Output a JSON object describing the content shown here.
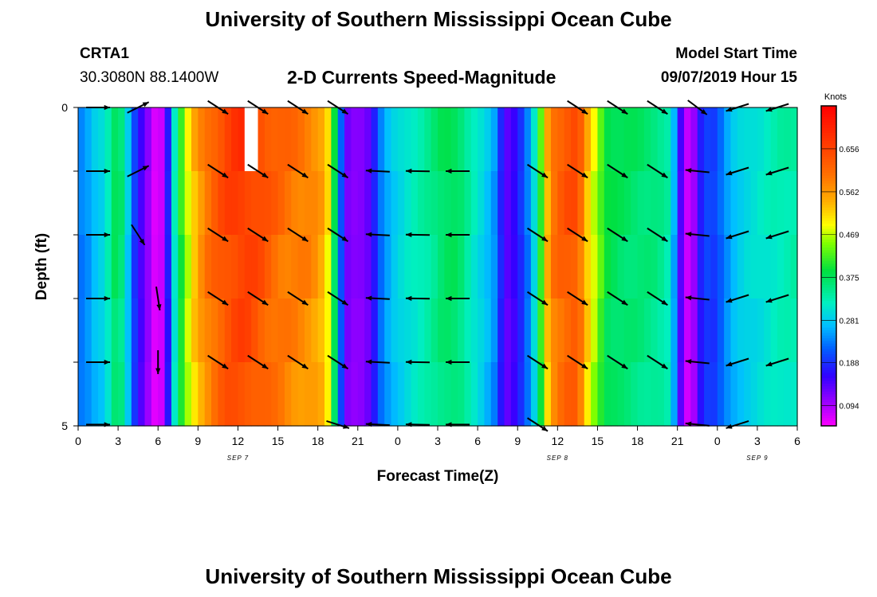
{
  "header": {
    "title": "University of Southern Mississippi Ocean Cube",
    "station_id": "CRTA1",
    "coordinates": "30.3080N 88.1400W",
    "subtitle": "2-D Currents Speed-Magnitude",
    "model_label": "Model Start Time",
    "model_time": "09/07/2019 Hour 15",
    "footer_title": "University of Southern Mississippi Ocean Cube"
  },
  "colors": {
    "background": "#ffffff",
    "text": "#000000",
    "missing": "#ffffff"
  },
  "chart_data": {
    "type": "heatmap",
    "title": "2-D Currents Speed-Magnitude",
    "xlabel": "Forecast Time(Z)",
    "ylabel": "Depth (ft)",
    "units": "Knots",
    "x_range_hours": [
      0,
      54
    ],
    "y_range_ft": [
      0,
      5
    ],
    "x_tick_hours": [
      0,
      3,
      6,
      9,
      12,
      15,
      18,
      21,
      24,
      27,
      30,
      33,
      36,
      39,
      42,
      45,
      48,
      51,
      54
    ],
    "x_tick_labels": [
      "0",
      "3",
      "6",
      "9",
      "12",
      "15",
      "18",
      "21",
      "0",
      "3",
      "6",
      "9",
      "12",
      "15",
      "18",
      "21",
      "0",
      "3",
      "6"
    ],
    "y_tick_ft": [
      0,
      1,
      2,
      3,
      4,
      5
    ],
    "y_tick_labels": [
      "0",
      "",
      "",
      "",
      "",
      "5"
    ],
    "day_labels": [
      {
        "text": "SEP 7",
        "hour": 12
      },
      {
        "text": "SEP 8",
        "hour": 36
      },
      {
        "text": "SEP 9",
        "hour": 51
      }
    ],
    "colorbar": {
      "min": 0.05,
      "max": 0.75,
      "tick_values": [
        0.094,
        0.188,
        0.281,
        0.375,
        0.469,
        0.562,
        0.656
      ],
      "tick_labels": [
        "0.094",
        "0.188",
        "0.281",
        "0.375",
        "0.469",
        "0.562",
        "0.656"
      ],
      "stops": [
        {
          "v": 0.05,
          "c": "#ff00ff"
        },
        {
          "v": 0.1,
          "c": "#a000ff"
        },
        {
          "v": 0.16,
          "c": "#3000ff"
        },
        {
          "v": 0.22,
          "c": "#0060ff"
        },
        {
          "v": 0.27,
          "c": "#00c0ff"
        },
        {
          "v": 0.32,
          "c": "#00f0c0"
        },
        {
          "v": 0.39,
          "c": "#00e040"
        },
        {
          "v": 0.45,
          "c": "#80ff00"
        },
        {
          "v": 0.49,
          "c": "#ffff00"
        },
        {
          "v": 0.54,
          "c": "#ffb000"
        },
        {
          "v": 0.6,
          "c": "#ff7000"
        },
        {
          "v": 0.66,
          "c": "#ff4000"
        },
        {
          "v": 0.75,
          "c": "#ff0000"
        }
      ]
    },
    "time_speed_profile": [
      [
        0,
        0.24
      ],
      [
        0.5,
        0.24
      ],
      [
        1.0,
        0.27
      ],
      [
        1.5,
        0.29
      ],
      [
        2.0,
        0.3
      ],
      [
        2.5,
        0.36
      ],
      [
        3.0,
        0.4
      ],
      [
        3.5,
        0.33
      ],
      [
        4.0,
        0.24
      ],
      [
        4.5,
        0.16
      ],
      [
        5.0,
        0.14
      ],
      [
        5.5,
        0.08
      ],
      [
        6.0,
        0.06
      ],
      [
        6.5,
        0.1
      ],
      [
        7.0,
        0.26
      ],
      [
        7.5,
        0.38
      ],
      [
        8.0,
        0.45
      ],
      [
        8.5,
        0.52
      ],
      [
        9.0,
        0.56
      ],
      [
        9.5,
        0.6
      ],
      [
        10.5,
        0.64
      ],
      [
        11.5,
        0.67
      ],
      [
        12.5,
        0.68
      ],
      [
        13.5,
        0.66
      ],
      [
        14.5,
        0.63
      ],
      [
        15.5,
        0.61
      ],
      [
        16.5,
        0.6
      ],
      [
        17.5,
        0.59
      ],
      [
        18.5,
        0.55
      ],
      [
        19.0,
        0.47
      ],
      [
        19.5,
        0.3
      ],
      [
        20.0,
        0.13
      ],
      [
        21.0,
        0.11
      ],
      [
        22.0,
        0.14
      ],
      [
        22.5,
        0.22
      ],
      [
        23.5,
        0.28
      ],
      [
        24.5,
        0.31
      ],
      [
        25.5,
        0.33
      ],
      [
        26.5,
        0.35
      ],
      [
        27.5,
        0.38
      ],
      [
        28.5,
        0.38
      ],
      [
        29.5,
        0.33
      ],
      [
        30.5,
        0.29
      ],
      [
        31.5,
        0.24
      ],
      [
        32.0,
        0.13
      ],
      [
        33.0,
        0.17
      ],
      [
        34.0,
        0.26
      ],
      [
        34.5,
        0.35
      ],
      [
        35.0,
        0.5
      ],
      [
        35.5,
        0.6
      ],
      [
        36.5,
        0.64
      ],
      [
        37.5,
        0.65
      ],
      [
        38.0,
        0.57
      ],
      [
        38.5,
        0.5
      ],
      [
        39.0,
        0.47
      ],
      [
        39.5,
        0.4
      ],
      [
        40.5,
        0.38
      ],
      [
        42.0,
        0.37
      ],
      [
        43.5,
        0.36
      ],
      [
        44.5,
        0.33
      ],
      [
        45.0,
        0.2
      ],
      [
        45.5,
        0.09
      ],
      [
        46.0,
        0.07
      ],
      [
        46.5,
        0.14
      ],
      [
        47.0,
        0.22
      ],
      [
        47.5,
        0.19
      ],
      [
        48.0,
        0.21
      ],
      [
        49.0,
        0.27
      ],
      [
        50.0,
        0.3
      ],
      [
        51.0,
        0.31
      ],
      [
        52.5,
        0.33
      ],
      [
        54.0,
        0.34
      ]
    ],
    "depth_rows": 5,
    "missing_cells": [
      {
        "hour": 13,
        "row": 0
      }
    ],
    "vectors": [
      {
        "hour": 1.5,
        "depths": [
          [
            0,
            0.3
          ],
          [
            1,
            0.3
          ],
          [
            2,
            0.3
          ],
          [
            3,
            0.3
          ],
          [
            4,
            0.3
          ],
          [
            5,
            0.3
          ]
        ],
        "dx": 1.0,
        "dy": 0.0
      },
      {
        "hour": 4.5,
        "depths": [
          [
            0,
            0.3
          ],
          [
            1,
            0.3
          ]
        ],
        "dx": 0.9,
        "dy": 0.45
      },
      {
        "hour": 4.5,
        "depths": [
          [
            2,
            0.3
          ]
        ],
        "dx": 0.55,
        "dy": -0.85
      },
      {
        "hour": 6.0,
        "depths": [
          [
            3,
            0.3
          ]
        ],
        "dx": 0.15,
        "dy": -0.99
      },
      {
        "hour": 6.0,
        "depths": [
          [
            4,
            0.3
          ]
        ],
        "dx": 0.0,
        "dy": -1.0
      },
      {
        "hour": 10.5,
        "depths": [
          [
            0,
            0.3
          ],
          [
            1,
            0.3
          ],
          [
            2,
            0.3
          ],
          [
            3,
            0.3
          ],
          [
            4,
            0.3
          ]
        ],
        "dx": 0.85,
        "dy": -0.55
      },
      {
        "hour": 13.5,
        "depths": [
          [
            0,
            0.3
          ],
          [
            1,
            0.3
          ],
          [
            2,
            0.3
          ],
          [
            3,
            0.3
          ],
          [
            4,
            0.3
          ]
        ],
        "dx": 0.85,
        "dy": -0.55
      },
      {
        "hour": 16.5,
        "depths": [
          [
            0,
            0.3
          ],
          [
            1,
            0.3
          ],
          [
            2,
            0.3
          ],
          [
            3,
            0.3
          ],
          [
            4,
            0.3
          ]
        ],
        "dx": 0.85,
        "dy": -0.55
      },
      {
        "hour": 19.5,
        "depths": [
          [
            0,
            0.3
          ],
          [
            1,
            0.3
          ],
          [
            2,
            0.3
          ],
          [
            3,
            0.3
          ],
          [
            4,
            0.3
          ]
        ],
        "dx": 0.85,
        "dy": -0.55
      },
      {
        "hour": 19.5,
        "depths": [
          [
            5,
            0.3
          ]
        ],
        "dx": 0.95,
        "dy": -0.3
      },
      {
        "hour": 22.5,
        "depths": [
          [
            1,
            0.3
          ],
          [
            2,
            0.3
          ],
          [
            3,
            0.3
          ],
          [
            4,
            0.3
          ],
          [
            5,
            0.3
          ]
        ],
        "dx": -1.0,
        "dy": 0.05
      },
      {
        "hour": 25.5,
        "depths": [
          [
            1,
            0.3
          ],
          [
            2,
            0.3
          ],
          [
            3,
            0.3
          ],
          [
            4,
            0.3
          ],
          [
            5,
            0.3
          ]
        ],
        "dx": -1.0,
        "dy": 0.02
      },
      {
        "hour": 28.5,
        "depths": [
          [
            1,
            0.3
          ],
          [
            2,
            0.3
          ],
          [
            3,
            0.3
          ],
          [
            4,
            0.3
          ],
          [
            5,
            0.3
          ]
        ],
        "dx": -1.0,
        "dy": 0.0
      },
      {
        "hour": 34.5,
        "depths": [
          [
            1,
            0.3
          ],
          [
            2,
            0.3
          ],
          [
            3,
            0.3
          ],
          [
            4,
            0.3
          ],
          [
            5,
            0.3
          ]
        ],
        "dx": 0.85,
        "dy": -0.55
      },
      {
        "hour": 37.5,
        "depths": [
          [
            0,
            0.3
          ],
          [
            1,
            0.3
          ],
          [
            2,
            0.3
          ],
          [
            3,
            0.3
          ],
          [
            4,
            0.3
          ]
        ],
        "dx": 0.85,
        "dy": -0.55
      },
      {
        "hour": 40.5,
        "depths": [
          [
            0,
            0.3
          ],
          [
            1,
            0.3
          ],
          [
            2,
            0.3
          ],
          [
            3,
            0.3
          ],
          [
            4,
            0.3
          ]
        ],
        "dx": 0.85,
        "dy": -0.55
      },
      {
        "hour": 43.5,
        "depths": [
          [
            0,
            0.3
          ],
          [
            1,
            0.3
          ],
          [
            2,
            0.3
          ],
          [
            3,
            0.3
          ],
          [
            4,
            0.3
          ]
        ],
        "dx": 0.85,
        "dy": -0.55
      },
      {
        "hour": 46.5,
        "depths": [
          [
            0,
            0.3
          ]
        ],
        "dx": 0.8,
        "dy": -0.6
      },
      {
        "hour": 46.5,
        "depths": [
          [
            1,
            0.3
          ],
          [
            2,
            0.3
          ],
          [
            3,
            0.3
          ],
          [
            4,
            0.3
          ],
          [
            5,
            0.3
          ]
        ],
        "dx": -1.0,
        "dy": 0.1
      },
      {
        "hour": 49.5,
        "depths": [
          [
            0,
            0.3
          ],
          [
            1,
            0.3
          ],
          [
            2,
            0.3
          ],
          [
            3,
            0.3
          ],
          [
            4,
            0.3
          ],
          [
            5,
            0.3
          ]
        ],
        "dx": -0.95,
        "dy": -0.3
      },
      {
        "hour": 52.5,
        "depths": [
          [
            0,
            0.3
          ],
          [
            1,
            0.3
          ],
          [
            2,
            0.3
          ],
          [
            3,
            0.3
          ],
          [
            4,
            0.3
          ]
        ],
        "dx": -0.95,
        "dy": -0.3
      }
    ]
  }
}
